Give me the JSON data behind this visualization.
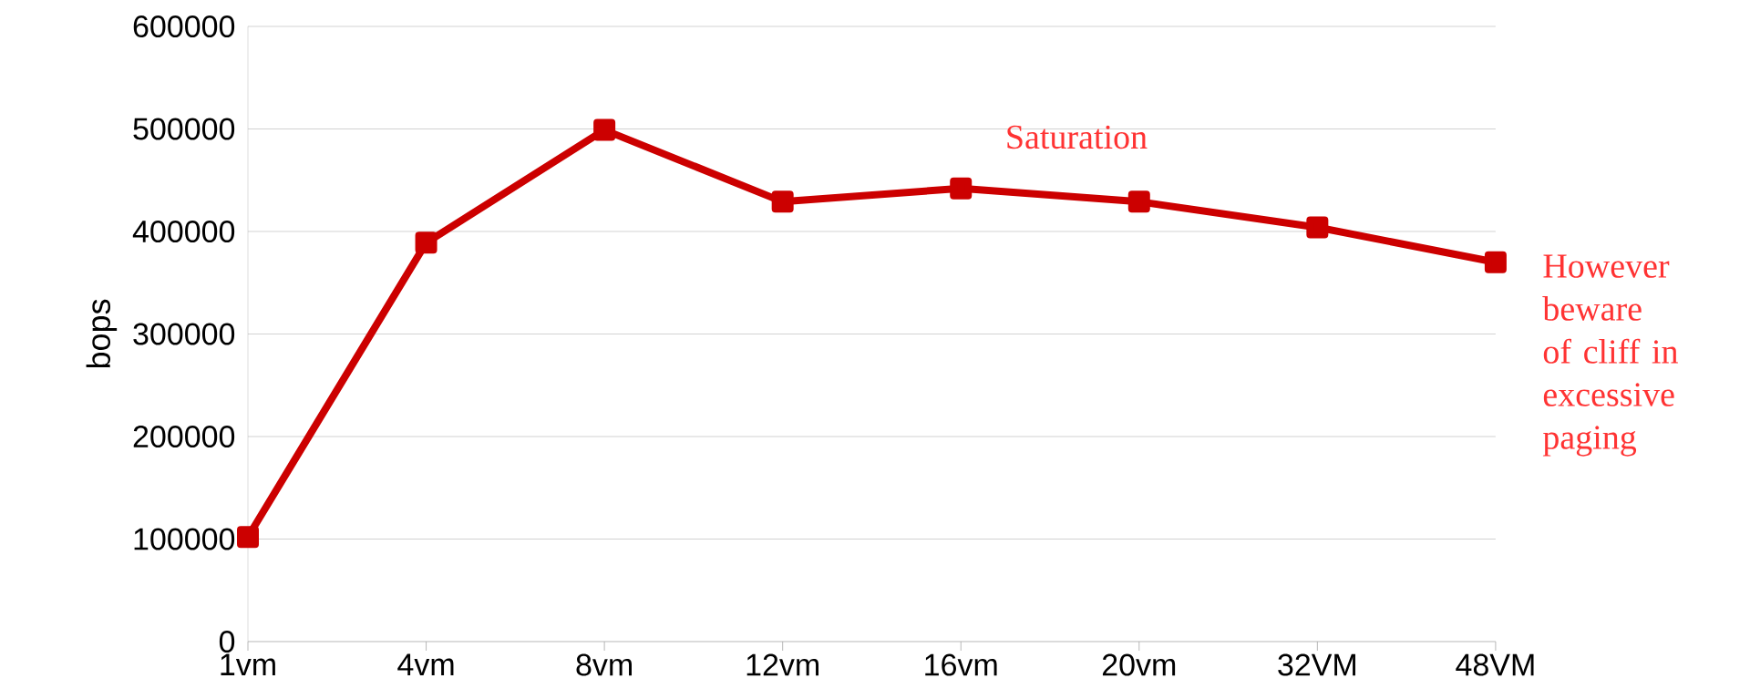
{
  "chart_data": {
    "type": "line",
    "ylabel": "bops",
    "categories": [
      "1vm",
      "4vm",
      "8vm",
      "12vm",
      "16vm",
      "20vm",
      "32VM",
      "48VM"
    ],
    "series": [
      {
        "color": "#cc0000",
        "values": [
          102000,
          389000,
          499000,
          429000,
          442000,
          429000,
          404000,
          370000
        ]
      }
    ],
    "ylim": [
      0,
      600000
    ],
    "yticks": [
      0,
      100000,
      200000,
      300000,
      400000,
      500000,
      600000
    ],
    "grid": "y",
    "marker": "square",
    "line_style": "solid",
    "annotations": [
      "Saturation",
      "However beware of cliff in excessive paging"
    ]
  }
}
